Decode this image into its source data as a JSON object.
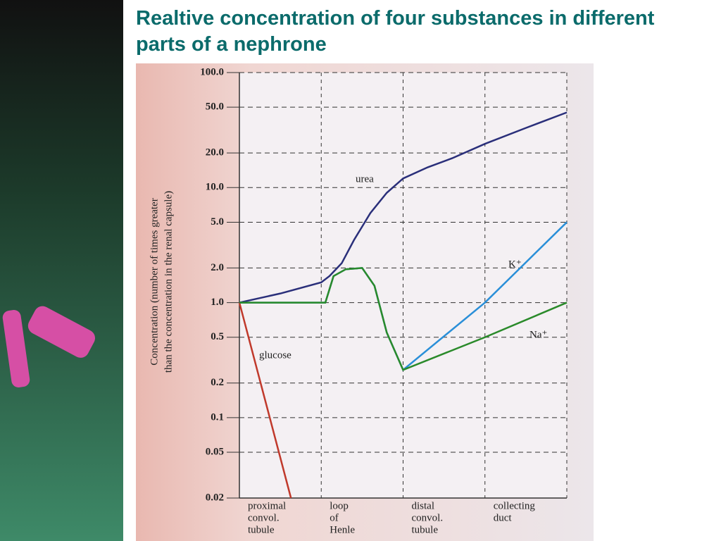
{
  "chart_data": {
    "type": "line",
    "title": "Realtive concentration of four substances in different parts of a nephrone",
    "y_label": [
      "Concentration (number of times greater",
      "than the concentration in the renal capsule)"
    ],
    "regions": [
      [
        "proximal",
        "convol.",
        "tubule"
      ],
      [
        "loop",
        "of",
        "Henle"
      ],
      [
        "distal",
        "convol.",
        "tubule"
      ],
      [
        "collecting",
        "duct"
      ]
    ],
    "xlim": [
      0,
      4
    ],
    "ylim": [
      0.02,
      100
    ],
    "log_y": true,
    "grid": true,
    "yticks": [
      0.02,
      0.05,
      0.1,
      0.2,
      0.5,
      {
        "value": 1,
        "label": "1.0"
      },
      {
        "value": 2,
        "label": "2.0"
      },
      {
        "value": 5,
        "label": "5.0"
      },
      {
        "value": 10,
        "label": "10.0"
      },
      {
        "value": 20,
        "label": "20.0"
      },
      {
        "value": 50,
        "label": "50.0"
      },
      {
        "value": 100,
        "label": "100.0"
      }
    ],
    "series": [
      {
        "name": "urea",
        "color": "#2a2f7a",
        "x": [
          0,
          0.5,
          1,
          1.1,
          1.25,
          1.4,
          1.6,
          1.8,
          2,
          2.3,
          2.6,
          3,
          3.5,
          4
        ],
        "values": [
          1,
          1.2,
          1.5,
          1.7,
          2.2,
          3.5,
          6,
          9,
          12,
          15,
          18,
          24,
          33,
          45
        ]
      },
      {
        "name": "glucose",
        "color": "#c0392b",
        "x": [
          0,
          0.63
        ],
        "values": [
          1,
          0.02
        ]
      },
      {
        "name": "K⁺",
        "color": "#2a8fd8",
        "x": [
          0,
          1.05,
          1.15,
          1.3,
          1.5,
          1.65,
          1.8,
          2,
          3,
          4
        ],
        "values": [
          1,
          1,
          1.7,
          1.95,
          2,
          1.4,
          0.55,
          0.26,
          1,
          5
        ]
      },
      {
        "name": "Na⁺",
        "color": "#2a8a2a",
        "x": [
          0,
          1.05,
          1.15,
          1.3,
          1.5,
          1.65,
          1.8,
          2,
          3,
          4
        ],
        "values": [
          1,
          1,
          1.7,
          1.95,
          2,
          1.4,
          0.55,
          0.26,
          0.5,
          1
        ]
      }
    ]
  }
}
